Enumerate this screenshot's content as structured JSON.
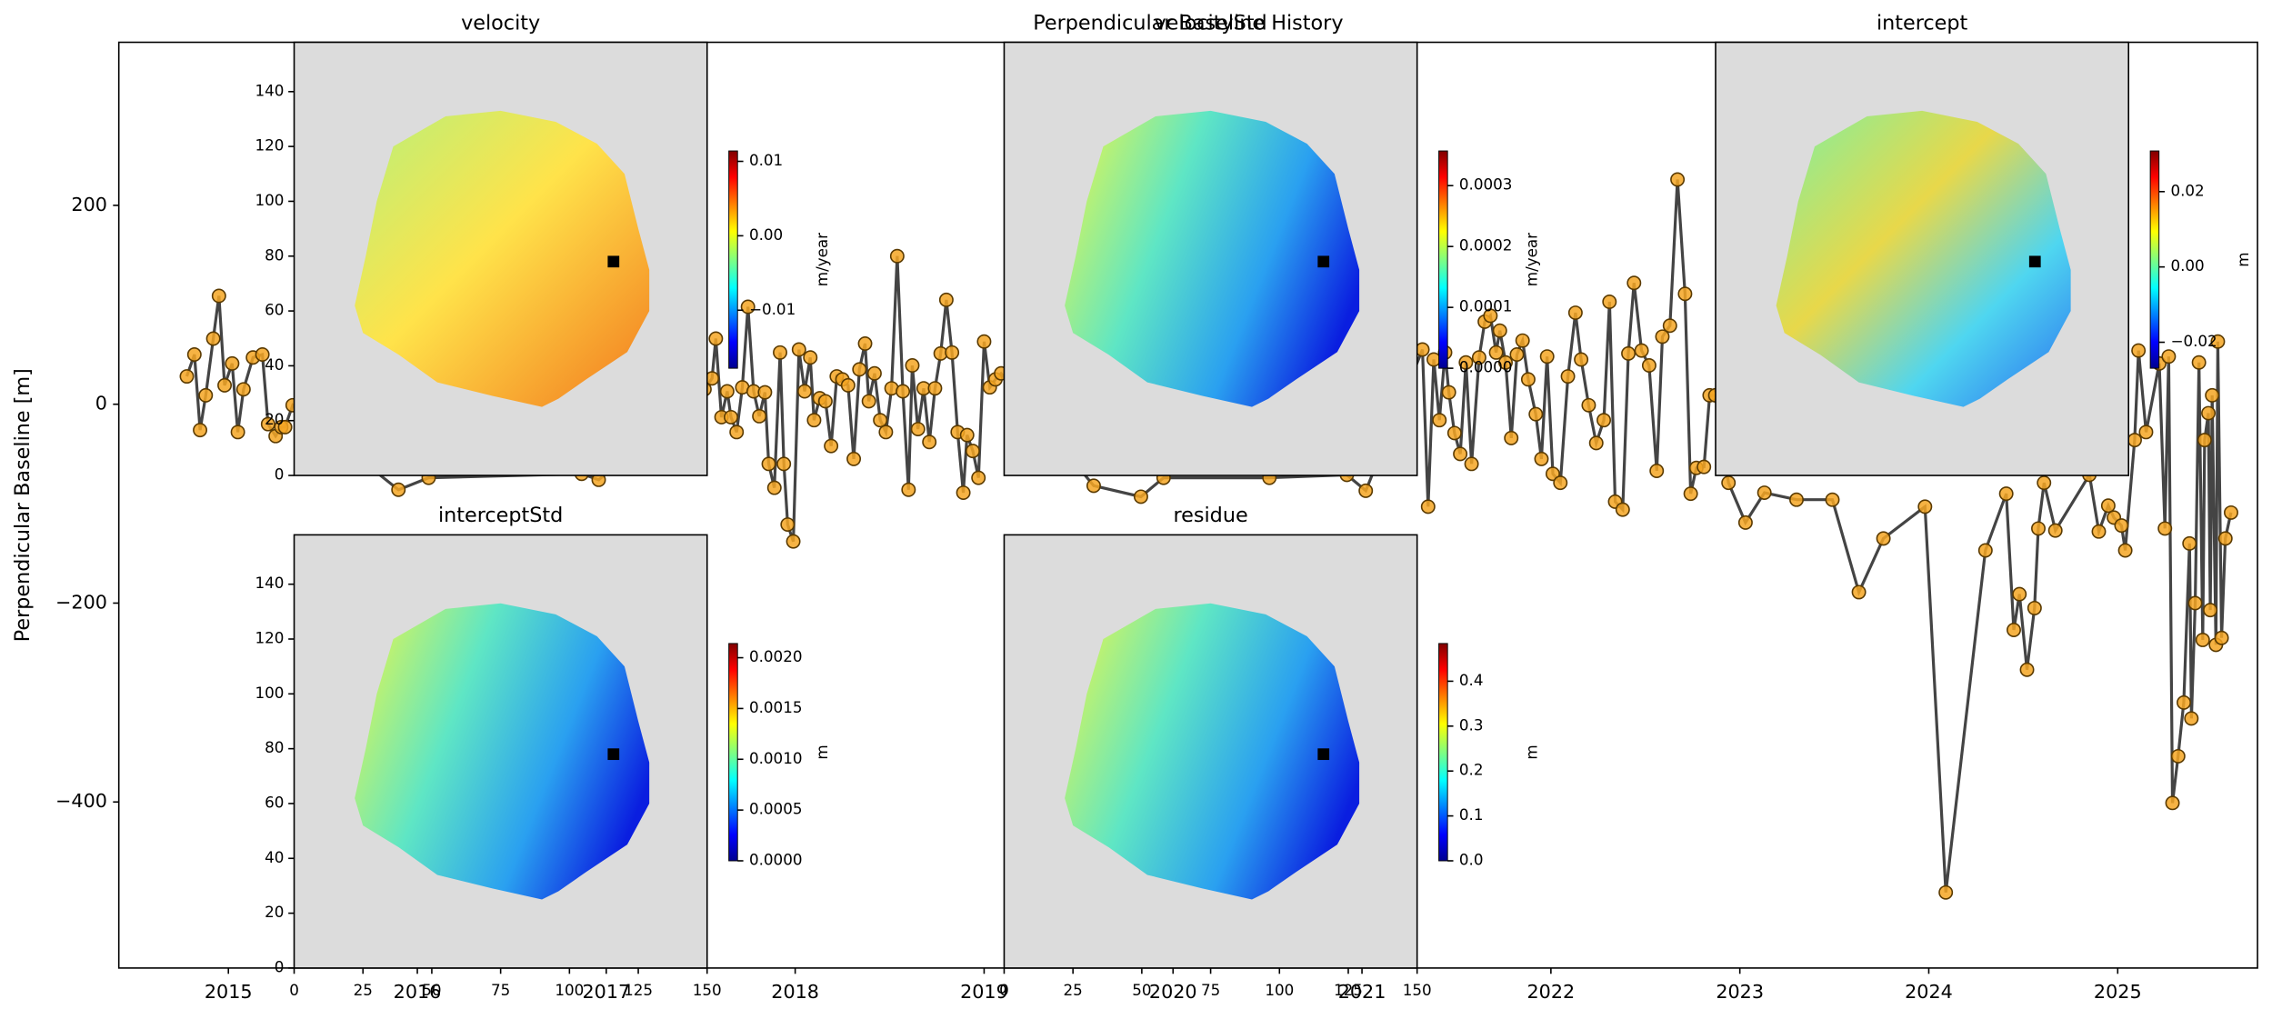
{
  "chart_data": [
    {
      "type": "line",
      "title": "Perpendicular Baseline History",
      "ylabel": "Perpendicular Baseline [m]",
      "color": "#444444",
      "marker_color": "#f5a623",
      "xlim": [
        2014.42,
        2025.74
      ],
      "xticks": [
        2015,
        2016,
        2017,
        2018,
        2019,
        2020,
        2021,
        2022,
        2023,
        2024,
        2025
      ],
      "ylim": [
        -567,
        364
      ],
      "yticks": [
        {
          "value": -400,
          "label": "−400"
        },
        {
          "value": -200,
          "label": "−200"
        },
        0,
        200
      ],
      "x": [
        2014.78,
        2014.82,
        2014.85,
        2014.88,
        2014.92,
        2014.95,
        2014.98,
        2015.02,
        2015.05,
        2015.08,
        2015.13,
        2015.18,
        2015.21,
        2015.25,
        2015.28,
        2015.3,
        2015.34,
        2015.9,
        2016.06,
        2016.87,
        2016.96,
        2017.52,
        2017.56,
        2017.58,
        2017.61,
        2017.64,
        2017.66,
        2017.69,
        2017.72,
        2017.75,
        2017.78,
        2017.81,
        2017.84,
        2017.86,
        2017.89,
        2017.92,
        2017.94,
        2017.96,
        2017.99,
        2018.02,
        2018.05,
        2018.08,
        2018.1,
        2018.13,
        2018.16,
        2018.19,
        2018.22,
        2018.25,
        2018.28,
        2018.31,
        2018.34,
        2018.37,
        2018.39,
        2018.42,
        2018.45,
        2018.48,
        2018.51,
        2018.54,
        2018.57,
        2018.6,
        2018.62,
        2018.65,
        2018.68,
        2018.71,
        2018.74,
        2018.77,
        2018.8,
        2018.83,
        2018.86,
        2018.89,
        2018.91,
        2018.94,
        2018.97,
        2019.0,
        2019.03,
        2019.06,
        2019.09,
        2019.58,
        2019.83,
        2019.95,
        2020.51,
        2020.92,
        2021.02,
        2021.32,
        2021.35,
        2021.38,
        2021.41,
        2021.44,
        2021.46,
        2021.49,
        2021.52,
        2021.55,
        2021.58,
        2021.62,
        2021.65,
        2021.68,
        2021.71,
        2021.73,
        2021.76,
        2021.79,
        2021.82,
        2021.85,
        2021.88,
        2021.92,
        2021.95,
        2021.98,
        2022.01,
        2022.05,
        2022.09,
        2022.13,
        2022.16,
        2022.2,
        2022.24,
        2022.28,
        2022.31,
        2022.34,
        2022.38,
        2022.41,
        2022.44,
        2022.48,
        2022.52,
        2022.56,
        2022.59,
        2022.63,
        2022.67,
        2022.71,
        2022.74,
        2022.77,
        2022.81,
        2022.84,
        2022.87,
        2022.94,
        2023.03,
        2023.13,
        2023.3,
        2023.49,
        2023.63,
        2023.76,
        2023.98,
        2024.09,
        2024.3,
        2024.41,
        2024.45,
        2024.48,
        2024.52,
        2024.56,
        2024.58,
        2024.61,
        2024.67,
        2024.85,
        2024.9,
        2024.95,
        2024.98,
        2025.02,
        2025.04,
        2025.09,
        2025.11,
        2025.15,
        2025.22,
        2025.25,
        2025.27,
        2025.29,
        2025.32,
        2025.35,
        2025.38,
        2025.39,
        2025.41,
        2025.43,
        2025.45,
        2025.46,
        2025.48,
        2025.49,
        2025.5,
        2025.52,
        2025.53,
        2025.55,
        2025.57,
        2025.6
      ],
      "values": [
        28,
        50,
        -26,
        9,
        66,
        109,
        19,
        41,
        -28,
        15,
        47,
        50,
        -20,
        -32,
        -23,
        -23,
        -1,
        -86,
        -74,
        -70,
        -76,
        15,
        26,
        66,
        -13,
        13,
        -13,
        -28,
        17,
        98,
        13,
        -12,
        12,
        -60,
        -84,
        52,
        -60,
        -121,
        -138,
        55,
        13,
        47,
        -16,
        6,
        3,
        -42,
        28,
        25,
        19,
        -55,
        35,
        61,
        3,
        31,
        -16,
        -28,
        16,
        149,
        13,
        -86,
        39,
        -25,
        16,
        -38,
        16,
        51,
        105,
        52,
        -28,
        -89,
        -31,
        -47,
        -74,
        63,
        17,
        25,
        31,
        -82,
        -93,
        -74,
        -74,
        -71,
        -87,
        55,
        -103,
        45,
        -16,
        52,
        12,
        -29,
        -50,
        42,
        -60,
        47,
        83,
        89,
        52,
        74,
        42,
        -34,
        50,
        64,
        25,
        -10,
        -55,
        48,
        -70,
        -79,
        28,
        92,
        45,
        -1,
        -39,
        -16,
        103,
        -98,
        -106,
        51,
        122,
        54,
        39,
        -67,
        68,
        79,
        226,
        111,
        -90,
        -64,
        -63,
        9,
        9,
        -79,
        -119,
        -89,
        -96,
        -96,
        -189,
        -135,
        -103,
        -491,
        -147,
        -90,
        -227,
        -191,
        -267,
        -205,
        -125,
        -79,
        -127,
        -71,
        -128,
        -102,
        -114,
        -122,
        -147,
        -36,
        54,
        -28,
        41,
        -125,
        48,
        -401,
        -354,
        -300,
        -140,
        -316,
        -200,
        42,
        -237,
        -36,
        -9,
        -207,
        9,
        -242,
        63,
        -235,
        -135,
        -109
      ]
    },
    {
      "type": "image",
      "title": "velocity",
      "xlim": [
        0,
        150
      ],
      "ylim": [
        0,
        158
      ],
      "yticks": [
        0,
        20,
        40,
        60,
        80,
        100,
        120,
        140
      ],
      "ref_point": [
        116,
        78
      ],
      "clabel": "m/year",
      "clim": [
        -0.0178,
        0.0114
      ],
      "cticks": [
        {
          "value": -0.01,
          "label": "−0.01"
        },
        {
          "value": 0,
          "label": "0.00"
        },
        0.01
      ]
    },
    {
      "type": "image",
      "title": "velocityStd",
      "xlim": [
        0,
        150
      ],
      "ylim": [
        0,
        158
      ],
      "ref_point": [
        116,
        78
      ],
      "clabel": "m/year",
      "clim": [
        0,
        0.000357
      ],
      "cticks": [
        {
          "value": 0,
          "label": "0.0000"
        },
        0.0001,
        0.0002,
        0.0003
      ]
    },
    {
      "type": "image",
      "title": "intercept",
      "xlim": [
        0,
        150
      ],
      "ylim": [
        0,
        158
      ],
      "ref_point": [
        116,
        78
      ],
      "clabel": "m",
      "clim": [
        -0.0269,
        0.0308
      ],
      "cticks": [
        {
          "value": -0.02,
          "label": "−0.02"
        },
        {
          "value": 0,
          "label": "0.00"
        },
        0.02
      ]
    },
    {
      "type": "image",
      "title": "interceptStd",
      "xlim": [
        0,
        150
      ],
      "ylim": [
        0,
        158
      ],
      "xticks": [
        0,
        25,
        50,
        75,
        100,
        125,
        150
      ],
      "yticks": [
        0,
        20,
        40,
        60,
        80,
        100,
        120,
        140
      ],
      "ref_point": [
        116,
        78
      ],
      "clabel": "m",
      "clim": [
        0,
        0.00214
      ],
      "cticks": [
        {
          "value": 0,
          "label": "0.0000"
        },
        0.0005,
        {
          "value": 0.001,
          "label": "0.0010"
        },
        0.0015,
        {
          "value": 0.002,
          "label": "0.0020"
        }
      ]
    },
    {
      "type": "image",
      "title": "residue",
      "xlim": [
        0,
        150
      ],
      "ylim": [
        0,
        158
      ],
      "xticks": [
        0,
        25,
        50,
        75,
        100,
        125,
        150
      ],
      "ref_point": [
        116,
        78
      ],
      "clabel": "m",
      "clim": [
        0,
        0.484
      ],
      "cticks": [
        {
          "value": 0,
          "label": "0.0"
        },
        0.1,
        0.2,
        0.3,
        0.4
      ]
    }
  ]
}
